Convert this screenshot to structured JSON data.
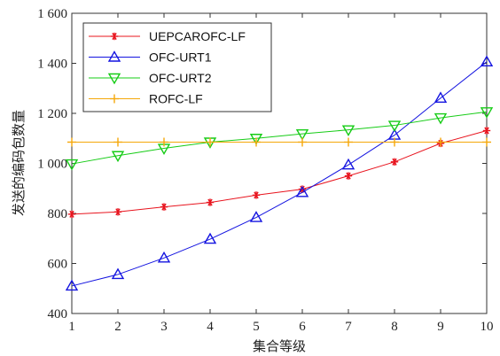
{
  "chart_data": {
    "type": "line",
    "xlabel": "集合等级",
    "ylabel": "发送的编码包数量",
    "x": [
      1,
      2,
      3,
      4,
      5,
      6,
      7,
      8,
      9,
      10
    ],
    "xlim": [
      1,
      10
    ],
    "ylim": [
      400,
      1600
    ],
    "xticks": [
      1,
      2,
      3,
      4,
      5,
      6,
      7,
      8,
      9,
      10
    ],
    "yticks": [
      400,
      600,
      800,
      1000,
      1200,
      1400,
      1600
    ],
    "ytick_labels": [
      "400",
      "600",
      "800",
      "1 000",
      "1 200",
      "1 400",
      "1 600"
    ],
    "grid": false,
    "legend_position": "top-left",
    "series": [
      {
        "name": "UEPCAROFC-LF",
        "color": "#e8141e",
        "marker": "asterisk",
        "values": [
          797,
          806,
          826,
          844,
          873,
          897,
          950,
          1006,
          1080,
          1131
        ]
      },
      {
        "name": "OFC-URT1",
        "color": "#1414e0",
        "marker": "triangle-up",
        "values": [
          510,
          556,
          622,
          697,
          784,
          884,
          994,
          1113,
          1261,
          1406
        ]
      },
      {
        "name": "OFC-URT2",
        "color": "#16cc16",
        "marker": "triangle-down",
        "values": [
          998,
          1031,
          1060,
          1085,
          1100,
          1118,
          1134,
          1152,
          1182,
          1206
        ]
      },
      {
        "name": "ROFC-LF",
        "color": "#f5a80a",
        "marker": "plus",
        "values": [
          1085,
          1085,
          1085,
          1085,
          1085,
          1085,
          1085,
          1085,
          1085,
          1085
        ]
      }
    ]
  }
}
